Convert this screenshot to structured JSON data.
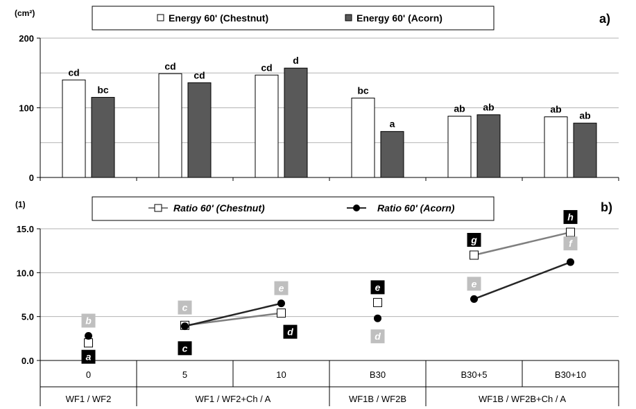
{
  "chart_data": [
    {
      "type": "bar",
      "panel_label": "a)",
      "unit_label": "(cm²)",
      "ylim": [
        0,
        200
      ],
      "yticks": [
        "0",
        "100",
        "200"
      ],
      "grid": true,
      "legend_placement": "top",
      "categories": [
        "0",
        "5",
        "10",
        "B30",
        "B30+5",
        "B30+10"
      ],
      "series": [
        {
          "name": "Energy 60' (Chestnut)",
          "color": "#ffffff",
          "values": [
            140,
            149,
            147,
            114,
            88,
            87
          ],
          "labels": [
            "cd",
            "cd",
            "cd",
            "bc",
            "ab",
            "ab"
          ]
        },
        {
          "name": "Energy 60' (Acorn)",
          "color": "#595959",
          "values": [
            115,
            136,
            157,
            66,
            90,
            78
          ],
          "labels": [
            "bc",
            "cd",
            "d",
            "a",
            "ab",
            "ab"
          ]
        }
      ]
    },
    {
      "type": "line",
      "panel_label": "b)",
      "unit_label": "(1)",
      "ylim": [
        0,
        15
      ],
      "yticks": [
        "0.0",
        "5.0",
        "10.0",
        "15.0"
      ],
      "grid": true,
      "legend_placement": "top",
      "categories": [
        "0",
        "5",
        "10",
        "B30",
        "B30+5",
        "B30+10"
      ],
      "groups": [
        "WF1 / WF2",
        "WF1 / WF2+Ch / A",
        "WF1B / WF2B",
        "WF1B / WF2B+Ch / A"
      ],
      "line_segments": [
        [
          1,
          2
        ],
        [
          4,
          5
        ]
      ],
      "series": [
        {
          "name": "Ratio 60' (Chestnut)",
          "color": "#7f7f7f",
          "marker": "square",
          "values": [
            2.0,
            4.0,
            5.4,
            6.6,
            12.0,
            14.6
          ],
          "labels": [
            "a",
            "c",
            "d",
            "e",
            "g",
            "h"
          ],
          "label_style": "black"
        },
        {
          "name": "Ratio 60' (Acorn)",
          "color": "#262626",
          "marker": "circle",
          "values": [
            2.8,
            3.9,
            6.5,
            4.8,
            7.0,
            11.2
          ],
          "labels": [
            "b",
            "c",
            "e",
            "d",
            "e",
            "f"
          ],
          "label_style": "gray"
        }
      ]
    }
  ]
}
